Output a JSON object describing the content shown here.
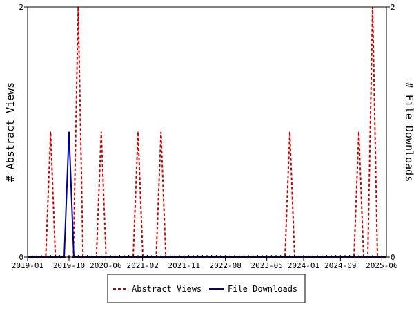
{
  "chart_data": {
    "type": "line",
    "title": "",
    "x_tick_labels": [
      "2019-01",
      "2019-10",
      "2020-06",
      "2021-02",
      "2021-11",
      "2022-08",
      "2023-05",
      "2024-01",
      "2024-09",
      "2025-06"
    ],
    "y_left": {
      "label": "# Abstract Views",
      "range": [
        0,
        2
      ],
      "tick_labels": [
        "0",
        "2"
      ]
    },
    "y_right": {
      "label": "# File Downloads",
      "range": [
        0,
        2
      ],
      "tick_labels": [
        "0",
        "2"
      ]
    },
    "x_range": [
      "2019-01",
      "2025-07"
    ],
    "grid": false,
    "legend_position": "bottom-center",
    "series": [
      {
        "name": "Abstract Views",
        "color": "#cc0000",
        "style": "dashed",
        "axis": "left",
        "points": [
          {
            "x": "2019-06",
            "y": 1
          },
          {
            "x": "2019-12",
            "y": 2
          },
          {
            "x": "2020-05",
            "y": 1
          },
          {
            "x": "2021-01",
            "y": 1
          },
          {
            "x": "2021-06",
            "y": 1
          },
          {
            "x": "2023-10",
            "y": 1
          },
          {
            "x": "2025-01",
            "y": 1
          },
          {
            "x": "2025-04",
            "y": 2
          }
        ]
      },
      {
        "name": "File Downloads",
        "color": "#000099",
        "style": "solid",
        "axis": "right",
        "points": [
          {
            "x": "2019-10",
            "y": 1
          }
        ]
      }
    ]
  }
}
